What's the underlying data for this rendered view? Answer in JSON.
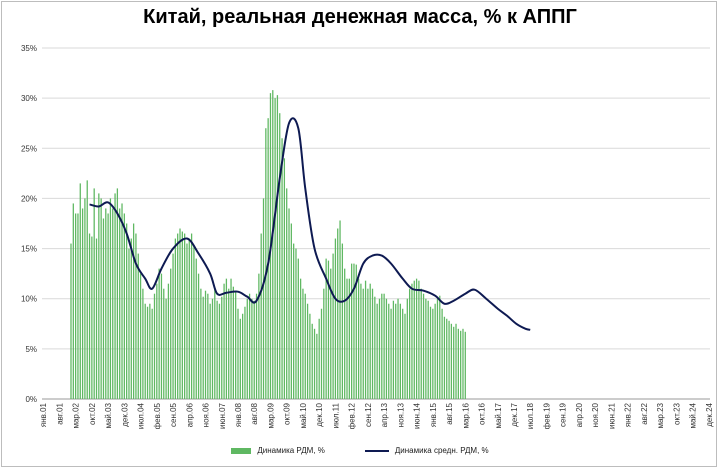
{
  "chart_data": {
    "type": "bar+line",
    "title": "Китай, реальная денежная масса, % к АППГ",
    "y_ticks": [
      "0%",
      "5%",
      "10%",
      "15%",
      "20%",
      "25%",
      "30%",
      "35%"
    ],
    "ylim": [
      0,
      35
    ],
    "x_tick_labels": [
      "янв.01",
      "авг.01",
      "мар.02",
      "окт.02",
      "май.03",
      "дек.03",
      "июл.04",
      "фев.05",
      "сен.05",
      "апр.06",
      "ноя.06",
      "июн.07",
      "янв.08",
      "авг.08",
      "мар.09",
      "окт.09",
      "май.10",
      "дек.10",
      "июл.11",
      "фев.12",
      "сен.12",
      "апр.13",
      "ноя.13",
      "июн.14",
      "янв.15",
      "авг.15",
      "мар.16",
      "окт.16",
      "май.17",
      "дек.17",
      "июл.18",
      "фев.19",
      "сен.19",
      "апр.20",
      "ноя.20",
      "июн.21",
      "янв.22",
      "авг.22",
      "мар.23",
      "окт.23",
      "май.24",
      "дек.24"
    ],
    "x_start": "2001-01",
    "x_end": "2024-12",
    "series": [
      {
        "name": "Динамика РДМ, %",
        "kind": "bar",
        "color": "#5fb862",
        "start": "2002-01",
        "values": [
          15.5,
          19.5,
          18.5,
          18.5,
          21.5,
          19.0,
          20.0,
          21.8,
          16.5,
          16.2,
          21.0,
          16.0,
          20.5,
          20.0,
          18.0,
          19.0,
          18.5,
          20.0,
          19.0,
          20.5,
          21.0,
          19.0,
          19.5,
          18.5,
          17.5,
          15.0,
          16.0,
          17.5,
          16.5,
          14.5,
          12.5,
          11.0,
          9.5,
          9.2,
          9.5,
          9.0,
          10.5,
          11.5,
          13.0,
          12.5,
          11.0,
          10.0,
          11.5,
          13.0,
          14.5,
          16.0,
          16.5,
          17.0,
          16.7,
          16.5,
          15.5,
          16.0,
          16.5,
          15.2,
          14.0,
          12.5,
          11.0,
          10.2,
          10.8,
          10.5,
          9.5,
          10.0,
          11.0,
          9.8,
          9.5,
          10.2,
          11.5,
          12.0,
          11.0,
          12.0,
          11.2,
          10.8,
          9.0,
          8.0,
          8.5,
          9.2,
          10.0,
          10.5,
          10.0,
          9.8,
          10.5,
          12.5,
          16.5,
          20.0,
          27.0,
          28.0,
          30.5,
          30.8,
          30.0,
          30.3,
          28.5,
          26.0,
          24.0,
          21.0,
          19.0,
          17.5,
          15.5,
          15.0,
          14.0,
          12.0,
          11.0,
          10.5,
          9.5,
          8.5,
          7.5,
          7.0,
          6.5,
          8.0,
          9.0,
          11.0,
          14.0,
          13.8,
          13.0,
          14.5,
          16.0,
          17.0,
          17.8,
          15.5,
          13.0,
          12.0,
          12.0,
          13.5,
          13.5,
          13.4,
          12.0,
          11.5,
          11.0,
          11.8,
          11.0,
          11.5,
          11.0,
          10.2,
          9.5,
          10.0,
          10.5,
          10.5,
          10.0,
          9.5,
          9.0,
          9.8,
          9.5,
          10.0,
          9.5,
          9.0,
          8.5,
          10.0,
          11.0,
          11.5,
          11.8,
          12.0,
          11.8,
          11.0,
          10.5,
          10.0,
          9.8,
          9.2,
          9.0,
          9.5,
          10.0,
          10.3,
          9.0,
          8.2,
          8.0,
          7.8,
          7.5,
          7.2,
          7.5,
          7.0,
          6.8,
          7.0,
          6.7
        ]
      },
      {
        "name": "Динамика средн. РДМ, %",
        "kind": "line",
        "color": "#0e1a52",
        "points": [
          [
            "2002-09",
            19.4
          ],
          [
            "2003-01",
            19.2
          ],
          [
            "2003-05",
            19.6
          ],
          [
            "2003-09",
            18.5
          ],
          [
            "2004-01",
            16.5
          ],
          [
            "2004-05",
            13.5
          ],
          [
            "2004-09",
            12.0
          ],
          [
            "2004-12",
            11.0
          ],
          [
            "2005-04",
            13.0
          ],
          [
            "2005-09",
            15.0
          ],
          [
            "2006-03",
            16.0
          ],
          [
            "2006-08",
            14.5
          ],
          [
            "2007-01",
            12.5
          ],
          [
            "2007-04",
            10.5
          ],
          [
            "2007-08",
            10.6
          ],
          [
            "2008-01",
            10.7
          ],
          [
            "2008-05",
            10.2
          ],
          [
            "2008-09",
            9.8
          ],
          [
            "2009-02",
            13.5
          ],
          [
            "2009-07",
            22.0
          ],
          [
            "2009-11",
            27.5
          ],
          [
            "2010-03",
            27.0
          ],
          [
            "2010-06",
            21.0
          ],
          [
            "2010-10",
            15.0
          ],
          [
            "2011-03",
            12.0
          ],
          [
            "2011-07",
            10.0
          ],
          [
            "2011-11",
            9.8
          ],
          [
            "2012-03",
            11.0
          ],
          [
            "2012-07",
            13.5
          ],
          [
            "2012-11",
            14.3
          ],
          [
            "2013-03",
            14.3
          ],
          [
            "2013-07",
            13.5
          ],
          [
            "2013-12",
            12.0
          ],
          [
            "2014-04",
            11.0
          ],
          [
            "2014-09",
            10.8
          ],
          [
            "2015-02",
            10.3
          ],
          [
            "2015-06",
            9.5
          ],
          [
            "2015-10",
            9.8
          ],
          [
            "2016-03",
            10.5
          ],
          [
            "2016-07",
            10.9
          ],
          [
            "2016-12",
            10.0
          ],
          [
            "2017-05",
            9.0
          ],
          [
            "2017-09",
            8.3
          ],
          [
            "2018-01",
            7.5
          ],
          [
            "2018-05",
            7.0
          ],
          [
            "2018-07",
            6.9
          ]
        ]
      }
    ],
    "grid": true,
    "legend_position": "bottom"
  }
}
